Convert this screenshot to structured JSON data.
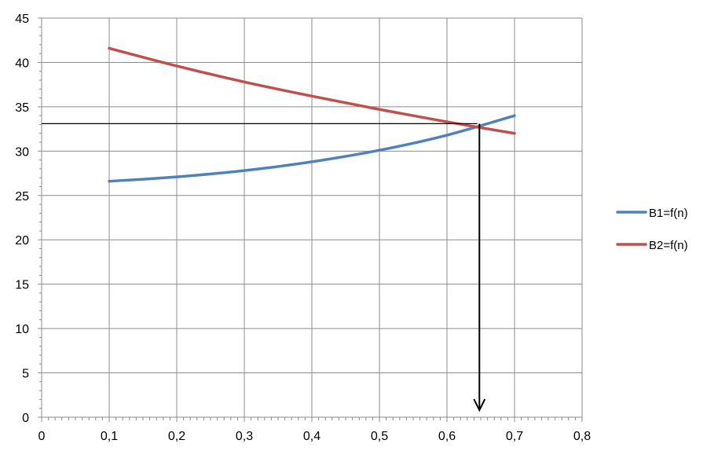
{
  "chart_data": {
    "type": "line",
    "title": "",
    "xlabel": "",
    "ylabel": "",
    "xlim": [
      0,
      0.8
    ],
    "ylim": [
      0,
      45
    ],
    "x_ticks": [
      "0",
      "0,1",
      "0,2",
      "0,3",
      "0,4",
      "0,5",
      "0,6",
      "0,7",
      "0,8"
    ],
    "y_ticks": [
      "0",
      "5",
      "10",
      "15",
      "20",
      "25",
      "30",
      "35",
      "40",
      "45"
    ],
    "grid": true,
    "legend_position": "right",
    "series": [
      {
        "name": "B1=f(n)",
        "color": "#4F81BD",
        "x": [
          0.1,
          0.2,
          0.3,
          0.4,
          0.5,
          0.6,
          0.7
        ],
        "y": [
          26.6,
          27.1,
          27.8,
          28.8,
          30.1,
          31.8,
          34.0
        ]
      },
      {
        "name": "B2=f(n)",
        "color": "#C0504D",
        "x": [
          0.1,
          0.2,
          0.3,
          0.4,
          0.5,
          0.6,
          0.7
        ],
        "y": [
          41.6,
          39.6,
          37.8,
          36.2,
          34.7,
          33.3,
          32.0
        ]
      }
    ],
    "annotations": [
      {
        "type": "horizontal-guide",
        "color": "#000000",
        "x_from": 0,
        "x_to": 0.645,
        "y": 33.1
      },
      {
        "type": "vertical-arrow",
        "color": "#000000",
        "x": 0.648,
        "y_from": 33.1,
        "y_to": 0.8
      }
    ]
  }
}
